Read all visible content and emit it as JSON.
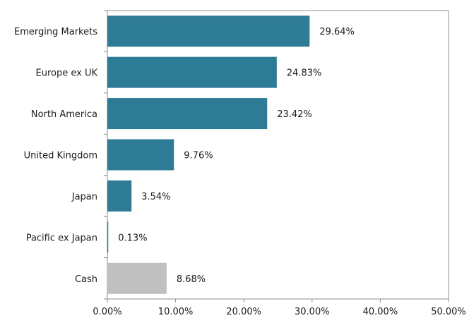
{
  "chart_data": {
    "type": "bar",
    "orientation": "horizontal",
    "categories": [
      "Emerging Markets",
      "Europe ex UK",
      "North America",
      "United Kingdom",
      "Japan",
      "Pacific ex Japan",
      "Cash"
    ],
    "values": [
      29.64,
      24.83,
      23.42,
      9.76,
      3.54,
      0.13,
      8.68
    ],
    "value_labels": [
      "29.64%",
      "24.83%",
      "23.42%",
      "9.76%",
      "3.54%",
      "0.13%",
      "8.68%"
    ],
    "bar_colors": [
      "#2e7b95",
      "#2e7b95",
      "#2e7b95",
      "#2e7b95",
      "#2e7b95",
      "#2e7b95",
      "#c0c0c0"
    ],
    "xlim": [
      0,
      50
    ],
    "x_ticks": [
      0,
      10,
      20,
      30,
      40,
      50
    ],
    "x_tick_labels": [
      "0.00%",
      "10.00%",
      "20.00%",
      "30.00%",
      "40.00%",
      "50.00%"
    ],
    "title": "",
    "xlabel": "",
    "ylabel": "",
    "grid": false,
    "legend": "none"
  }
}
